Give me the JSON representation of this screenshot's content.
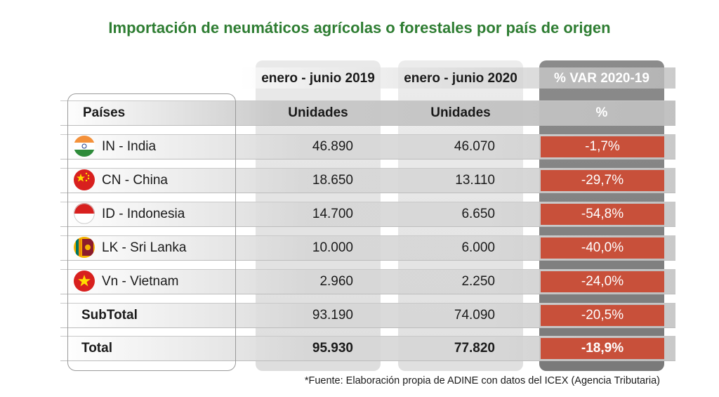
{
  "title": "Importación de neumáticos agrícolas o forestales por país de origen",
  "periods": {
    "p2019": "enero - junio 2019",
    "p2020": "enero - junio 2020",
    "var": "% VAR 2020-19"
  },
  "headers": {
    "country": "Países",
    "units2019": "Unidades",
    "units2020": "Unidades",
    "pct": "%"
  },
  "rows": [
    {
      "label": "IN - India",
      "flag_icon": "india-flag-icon",
      "v2019": "46.890",
      "v2020": "46.070",
      "var": "-1,7%"
    },
    {
      "label": "CN - China",
      "flag_icon": "china-flag-icon",
      "v2019": "18.650",
      "v2020": "13.110",
      "var": "-29,7%"
    },
    {
      "label": "ID - Indonesia",
      "flag_icon": "indonesia-flag-icon",
      "v2019": "14.700",
      "v2020": "6.650",
      "var": "-54,8%"
    },
    {
      "label": "LK - Sri Lanka",
      "flag_icon": "sri-lanka-flag-icon",
      "v2019": "10.000",
      "v2020": "6.000",
      "var": "-40,0%"
    },
    {
      "label": "Vn - Vietnam",
      "flag_icon": "vietnam-flag-icon",
      "v2019": "2.960",
      "v2020": "2.250",
      "var": "-24,0%"
    }
  ],
  "subtotal": {
    "label": "SubTotal",
    "v2019": "93.190",
    "v2020": "74.090",
    "var": "-20,5%"
  },
  "total": {
    "label": "Total",
    "v2019": "95.930",
    "v2020": "77.820",
    "var": "-18,9%"
  },
  "source": "*Fuente: Elaboración propia de ADINE con datos del ICEX (Agencia Tributaria)",
  "colors": {
    "title": "#2e7d32",
    "negative_cell": "#c8503a",
    "var_column": "#808080"
  },
  "chart_data": {
    "type": "table",
    "title": "Importación de neumáticos agrícolas o forestales por país de origen",
    "columns": [
      "Países",
      "enero - junio 2019 (Unidades)",
      "enero - junio 2020 (Unidades)",
      "% VAR 2020-19"
    ],
    "rows": [
      [
        "IN - India",
        46890,
        46070,
        -1.7
      ],
      [
        "CN - China",
        18650,
        13110,
        -29.7
      ],
      [
        "ID - Indonesia",
        14700,
        6650,
        -54.8
      ],
      [
        "LK - Sri Lanka",
        10000,
        6000,
        -40.0
      ],
      [
        "Vn - Vietnam",
        2960,
        2250,
        -24.0
      ],
      [
        "SubTotal",
        93190,
        74090,
        -20.5
      ],
      [
        "Total",
        95930,
        77820,
        -18.9
      ]
    ]
  }
}
